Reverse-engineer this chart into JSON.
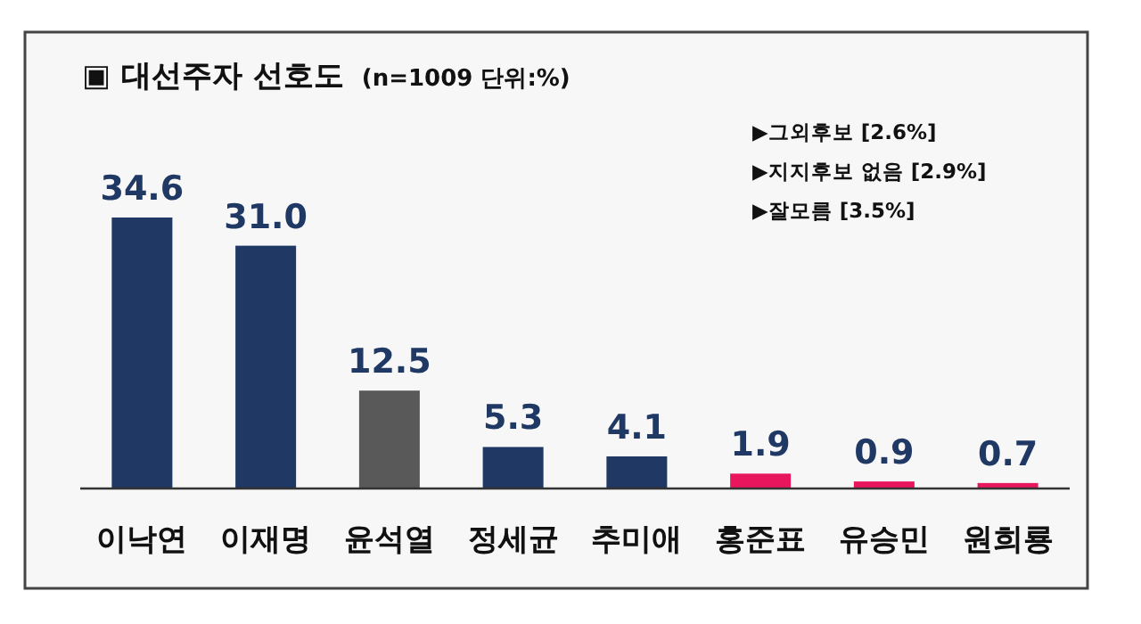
{
  "chart_data": {
    "type": "bar",
    "title": "▣ 대선주자 선호도",
    "subtitle": "(n=1009 단위:%)",
    "categories": [
      "이낙연",
      "이재명",
      "윤석열",
      "정세균",
      "추미애",
      "홍준표",
      "유승민",
      "원희룡"
    ],
    "values": [
      34.6,
      31.0,
      12.5,
      5.3,
      4.1,
      1.9,
      0.9,
      0.7
    ],
    "colors": [
      "#1f3864",
      "#1f3864",
      "#595959",
      "#1f3864",
      "#1f3864",
      "#e8175d",
      "#e8175d",
      "#e8175d"
    ],
    "value_labels": [
      "34.6",
      "31.0",
      "12.5",
      "5.3",
      "4.1",
      "1.9",
      "0.9",
      "0.7"
    ],
    "annotations": [
      "▶그외후보  [2.6%]",
      "▶지지후보 없음  [2.9%]",
      "▶잘모름 [3.5%]"
    ]
  }
}
